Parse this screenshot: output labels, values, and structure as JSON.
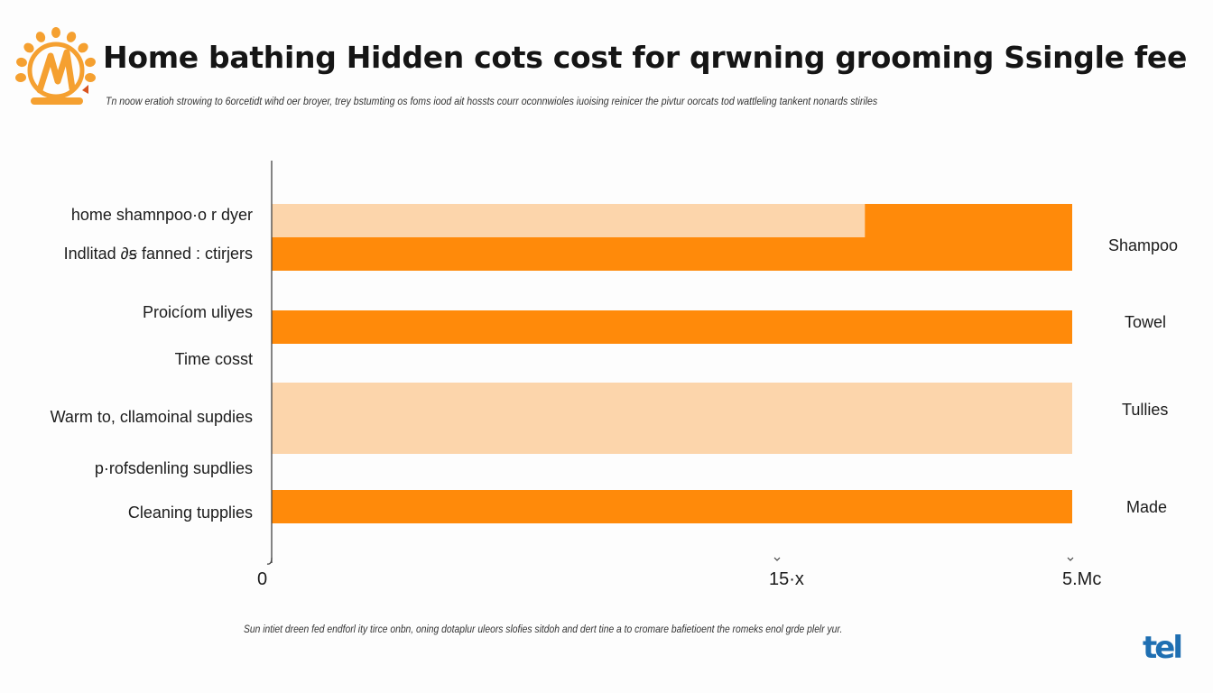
{
  "header": {
    "logo_icon": "sun-logo-icon",
    "title": "Home bathing Hidden cots cost  for qrwning grooming Ssingle fee",
    "subtitle": "Tn noow eratioh strowing to 6orcetidt wihd oer broyer, trey bstumting os foms iood ait hossts courr oconnwioles iuoising reinicer the pivtur oorcats tod wattleling tankent nonards stiriles"
  },
  "footer": {
    "footnote": "Sun intiet dreen fed endforl ity tirce onbn, oning dotaplur uleors slofies sitdoh and dert tine a to cromare bafietioent the romeks enol grde plelr yur.",
    "brand_text": "tel",
    "brand_icon": "tel-brand-logo-icon"
  },
  "colors": {
    "primary_orange": "#ff8a0a",
    "light_orange": "#fcd5ab",
    "axis": "#444444",
    "brand_blue": "#1f6fb2",
    "logo_orange": "#f5a030"
  },
  "chart_data": {
    "type": "bar",
    "orientation": "horizontal",
    "title": "Home bathing Hidden cots cost  for qrwning grooming Ssingle fee",
    "xlabel": "",
    "ylabel": "",
    "x_ticks": [
      "0",
      "15·x",
      "5.Mc"
    ],
    "x_tick_positions": [
      0,
      0.646,
      1.0
    ],
    "xlim": [
      0,
      1.0
    ],
    "grid": false,
    "category_labels_left": [
      "home shamnpoo·o r dyer",
      "Indlitad ∂ꞩ fanned : ctirjers",
      "Proicíom uliyes",
      "Time cosst",
      "Warm  to, cllamoinal supdies",
      "p·rofsdenling supdlies",
      "Cleaning tupplies"
    ],
    "series_labels_right": [
      "Shampoo",
      "Towel",
      "Tullies",
      "Made"
    ],
    "bars": [
      {
        "group": "Shampoo",
        "segment": "light",
        "value": 0.741,
        "color": "#fcd5ab"
      },
      {
        "group": "Shampoo",
        "segment": "dark-cap",
        "value_start": 0.741,
        "value": 1.0,
        "color": "#ff8a0a"
      },
      {
        "group": "Shampoo",
        "segment": "dark",
        "value": 1.0,
        "color": "#ff8a0a"
      },
      {
        "group": "Towel",
        "segment": "dark",
        "value": 1.0,
        "color": "#ff8a0a"
      },
      {
        "group": "Tullies",
        "segment": "light",
        "value": 1.0,
        "color": "#fcd5ab"
      },
      {
        "group": "Made",
        "segment": "dark",
        "value": 1.0,
        "color": "#ff8a0a"
      }
    ]
  }
}
